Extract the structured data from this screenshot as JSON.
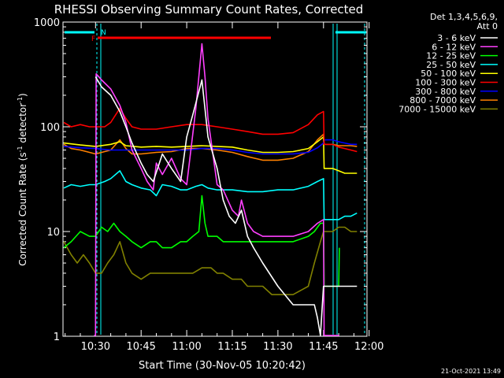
{
  "chart_data": {
    "type": "line",
    "title": "RHESSI Observing Summary Count Rates, Corrected",
    "xlabel": "Start Time (30-Nov-05 10:20:42)",
    "ylabel_prefix": "Corrected Count Rate (s",
    "ylabel_sup1": "-1",
    "ylabel_mid": " detector",
    "ylabel_sup2": "-1",
    "ylabel_suffix": ")",
    "y_scale": "log",
    "ylim": [
      1,
      1000
    ],
    "xlim_minutes": [
      -10.7,
      89.3
    ],
    "x_ticks": [
      {
        "label": "10:30",
        "t": 0
      },
      {
        "label": "10:45",
        "t": 15
      },
      {
        "label": "11:00",
        "t": 30
      },
      {
        "label": "11:15",
        "t": 45
      },
      {
        "label": "11:30",
        "t": 60
      },
      {
        "label": "11:45",
        "t": 75
      },
      {
        "label": "12:00",
        "t": 90
      }
    ],
    "y_ticks": [
      {
        "label": "1",
        "v": 1
      },
      {
        "label": "10",
        "v": 10
      },
      {
        "label": "100",
        "v": 100
      },
      {
        "label": "1000",
        "v": 1000
      }
    ],
    "legend_header": [
      "Det 1,3,4,5,6,9,",
      "Att 0"
    ],
    "annotations": {
      "flag_f": "F",
      "flag_n": "N",
      "timestamp": "21-Oct-2021 13:49"
    },
    "series": [
      {
        "name": "3 - 6 keV",
        "color": "#ffffff",
        "x": [
          0,
          2,
          5,
          8,
          10,
          12,
          15,
          17,
          19,
          22,
          25,
          28,
          30,
          32,
          35,
          37,
          40,
          42,
          44,
          46,
          48,
          50,
          52,
          55,
          60,
          65,
          70,
          72,
          73,
          74,
          75,
          76,
          78,
          80,
          82,
          84,
          86
        ],
        "y": [
          300,
          240,
          200,
          140,
          100,
          70,
          45,
          35,
          30,
          55,
          40,
          30,
          80,
          130,
          280,
          80,
          40,
          20,
          14,
          12,
          16,
          9,
          7,
          5,
          3,
          2,
          2,
          2,
          1.5,
          1,
          3,
          3,
          3,
          3,
          3,
          3,
          3
        ]
      },
      {
        "name": "6 - 12 keV",
        "color": "#ff40ff",
        "x": [
          -0.5,
          0,
          0.2,
          2,
          5,
          8,
          10,
          12,
          15,
          17,
          19,
          20,
          22,
          25,
          28,
          30,
          33,
          35,
          36,
          37,
          40,
          42,
          45,
          47,
          48,
          50,
          52,
          55,
          60,
          65,
          70,
          73,
          75,
          75.2,
          77,
          79,
          80,
          80.2
        ],
        "y": [
          1,
          1,
          320,
          280,
          230,
          160,
          110,
          60,
          40,
          30,
          25,
          45,
          35,
          50,
          32,
          28,
          150,
          620,
          300,
          120,
          28,
          25,
          16,
          14,
          20,
          12,
          10,
          9,
          9,
          9,
          10,
          12,
          13,
          1,
          1,
          1,
          1,
          1
        ]
      },
      {
        "name": "12 - 25 keV",
        "color": "#00ff00",
        "x": [
          -10.5,
          -8,
          -5,
          -2,
          0,
          2,
          4,
          6,
          8,
          10,
          12,
          15,
          18,
          20,
          22,
          25,
          28,
          30,
          32,
          34,
          35,
          36,
          37,
          40,
          42,
          45,
          48,
          50,
          55,
          60,
          65,
          70,
          72,
          74,
          75,
          75.2,
          77,
          79,
          80,
          80.2
        ],
        "y": [
          7,
          8,
          10,
          9,
          9,
          11,
          10,
          12,
          10,
          9,
          8,
          7,
          8,
          8,
          7,
          7,
          8,
          8,
          9,
          10,
          22,
          12,
          9,
          9,
          8,
          8,
          8,
          8,
          8,
          8,
          8,
          9,
          10,
          12,
          12,
          3,
          3,
          3,
          3,
          7
        ]
      },
      {
        "name": "25 - 50 keV",
        "color": "#00ffff",
        "x": [
          -10.5,
          -8,
          -5,
          -2,
          0,
          3,
          5,
          8,
          10,
          12,
          15,
          18,
          20,
          22,
          25,
          28,
          30,
          33,
          35,
          37,
          40,
          45,
          50,
          55,
          60,
          65,
          70,
          73,
          75,
          75.2,
          78,
          80,
          82,
          84,
          86
        ],
        "y": [
          26,
          28,
          27,
          28,
          28,
          30,
          32,
          38,
          30,
          28,
          26,
          25,
          22,
          28,
          27,
          25,
          25,
          27,
          28,
          26,
          25,
          25,
          24,
          24,
          25,
          25,
          27,
          30,
          32,
          13,
          13,
          13,
          14,
          14,
          15
        ]
      },
      {
        "name": "50 - 100 keV",
        "color": "#ffff00",
        "x": [
          -10.5,
          -5,
          0,
          5,
          8,
          10,
          15,
          20,
          25,
          30,
          35,
          40,
          45,
          50,
          55,
          60,
          65,
          70,
          73,
          75,
          75.2,
          78,
          80,
          82,
          84,
          86
        ],
        "y": [
          70,
          67,
          65,
          68,
          72,
          66,
          64,
          65,
          64,
          65,
          66,
          65,
          64,
          60,
          57,
          57,
          58,
          62,
          72,
          80,
          40,
          40,
          38,
          36,
          36,
          36
        ]
      },
      {
        "name": "100 - 300 keV",
        "color": "#ff0000",
        "x": [
          -10.5,
          -8,
          -5,
          -2,
          0,
          3,
          5,
          8,
          10,
          12,
          15,
          20,
          25,
          30,
          35,
          40,
          45,
          50,
          55,
          60,
          65,
          70,
          73,
          75,
          75.2,
          78,
          80,
          82,
          84,
          86
        ],
        "y": [
          110,
          100,
          105,
          100,
          100,
          100,
          110,
          150,
          120,
          100,
          95,
          95,
          100,
          105,
          105,
          100,
          95,
          90,
          85,
          85,
          88,
          105,
          130,
          140,
          68,
          68,
          64,
          62,
          60,
          58
        ]
      },
      {
        "name": "300 - 800 keV",
        "color": "#0000ff",
        "x": [
          -10.5,
          -5,
          0,
          5,
          10,
          15,
          20,
          25,
          30,
          35,
          40,
          45,
          50,
          55,
          60,
          65,
          70,
          73,
          75,
          75.2,
          78,
          80,
          82,
          84,
          86
        ],
        "y": [
          65,
          63,
          62,
          60,
          60,
          60,
          60,
          60,
          60,
          62,
          62,
          60,
          57,
          55,
          55,
          55,
          57,
          63,
          70,
          75,
          75,
          72,
          70,
          68,
          68
        ]
      },
      {
        "name": "800 - 7000 keV",
        "color": "#ff8000",
        "x": [
          -10.5,
          -8,
          -5,
          -2,
          0,
          3,
          5,
          8,
          10,
          12,
          15,
          20,
          25,
          30,
          35,
          40,
          45,
          50,
          55,
          60,
          65,
          70,
          73,
          75,
          75.2,
          78,
          80,
          82,
          84,
          86
        ],
        "y": [
          68,
          62,
          60,
          57,
          55,
          58,
          60,
          75,
          62,
          55,
          55,
          57,
          58,
          62,
          62,
          60,
          57,
          52,
          48,
          48,
          50,
          58,
          75,
          85,
          68,
          68,
          66,
          66,
          66,
          65
        ]
      },
      {
        "name": "7000 - 15000 keV",
        "color": "#808000",
        "x": [
          -10.5,
          -8,
          -6,
          -4,
          -2,
          0,
          2,
          4,
          6,
          8,
          10,
          12,
          15,
          18,
          20,
          22,
          25,
          28,
          30,
          32,
          35,
          38,
          40,
          42,
          45,
          48,
          50,
          52,
          55,
          58,
          60,
          65,
          70,
          72,
          74,
          75,
          75.2,
          78,
          80,
          82,
          84,
          86
        ],
        "y": [
          8,
          6,
          5,
          6,
          5,
          4,
          4,
          5,
          6,
          8,
          5,
          4,
          3.5,
          4,
          4,
          4,
          4,
          4,
          4,
          4,
          4.5,
          4.5,
          4,
          4,
          3.5,
          3.5,
          3,
          3,
          3,
          2.5,
          2.5,
          2.5,
          3,
          5,
          8,
          10,
          10,
          10,
          11,
          11,
          10,
          10
        ]
      }
    ]
  }
}
